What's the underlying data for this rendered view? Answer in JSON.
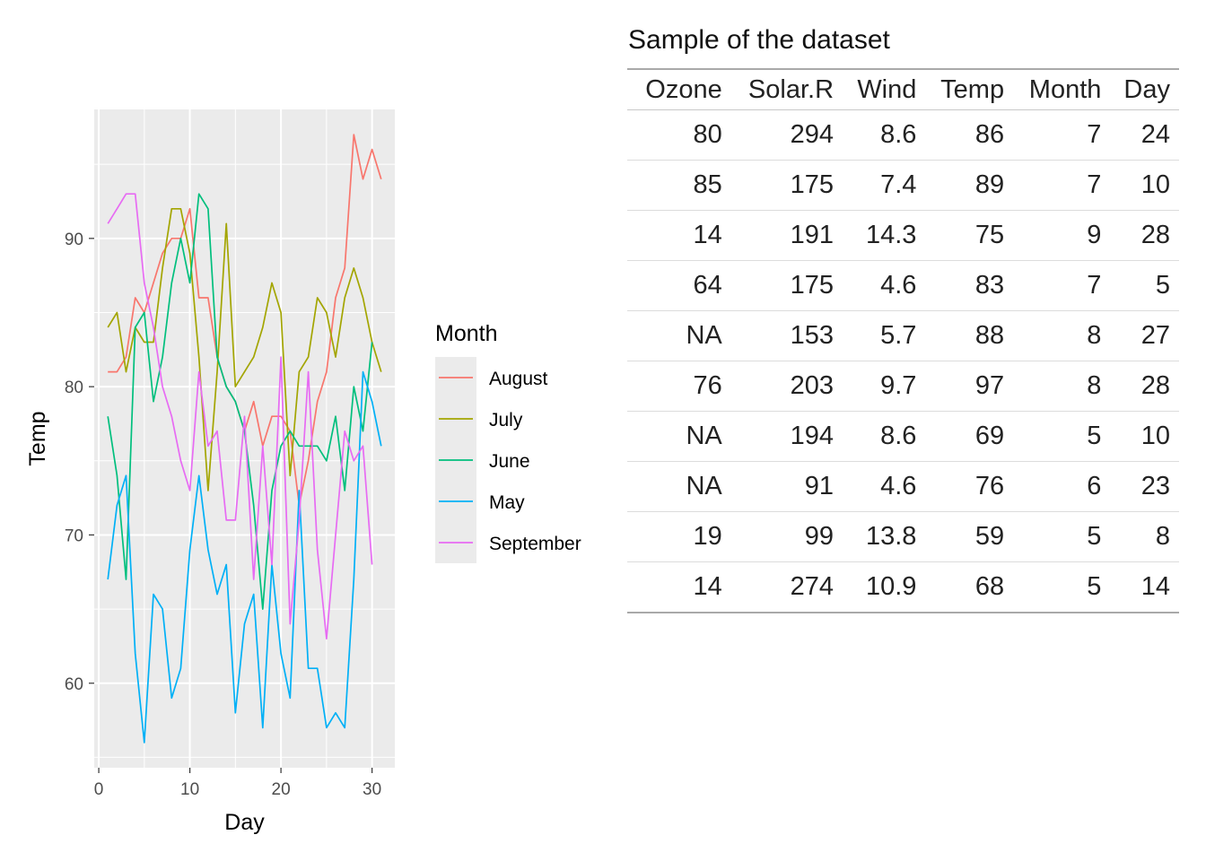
{
  "chart_data": {
    "type": "line",
    "title": "",
    "xlabel": "Day",
    "ylabel": "Temp",
    "xlim": [
      -0.5,
      32.5
    ],
    "ylim": [
      54.3,
      98.7
    ],
    "xticks": [
      0,
      10,
      20,
      30
    ],
    "yticks": [
      60,
      70,
      80,
      90
    ],
    "grid": true,
    "legend": {
      "title": "Month",
      "position": "right"
    },
    "series": [
      {
        "name": "August",
        "color": "#F8766D",
        "x": [
          1,
          2,
          3,
          4,
          5,
          6,
          7,
          8,
          9,
          10,
          11,
          12,
          13,
          14,
          15,
          16,
          17,
          18,
          19,
          20,
          21,
          22,
          23,
          24,
          25,
          26,
          27,
          28,
          29,
          30,
          31
        ],
        "values": [
          81,
          81,
          82,
          86,
          85,
          87,
          89,
          90,
          90,
          92,
          86,
          86,
          82,
          80,
          79,
          77,
          79,
          76,
          78,
          78,
          77,
          72,
          75,
          79,
          81,
          86,
          88,
          97,
          94,
          96,
          94
        ]
      },
      {
        "name": "July",
        "color": "#A3A500",
        "x": [
          1,
          2,
          3,
          4,
          5,
          6,
          7,
          8,
          9,
          10,
          11,
          12,
          13,
          14,
          15,
          16,
          17,
          18,
          19,
          20,
          21,
          22,
          23,
          24,
          25,
          26,
          27,
          28,
          29,
          30,
          31
        ],
        "values": [
          84,
          85,
          81,
          84,
          83,
          83,
          88,
          92,
          92,
          89,
          82,
          73,
          81,
          91,
          80,
          81,
          82,
          84,
          87,
          85,
          74,
          81,
          82,
          86,
          85,
          82,
          86,
          88,
          86,
          83,
          81
        ]
      },
      {
        "name": "June",
        "color": "#00BF7D",
        "x": [
          1,
          2,
          3,
          4,
          5,
          6,
          7,
          8,
          9,
          10,
          11,
          12,
          13,
          14,
          15,
          16,
          17,
          18,
          19,
          20,
          21,
          22,
          23,
          24,
          25,
          26,
          27,
          28,
          29,
          30
        ],
        "values": [
          78,
          74,
          67,
          84,
          85,
          79,
          82,
          87,
          90,
          87,
          93,
          92,
          82,
          80,
          79,
          77,
          72,
          65,
          73,
          76,
          77,
          76,
          76,
          76,
          75,
          78,
          73,
          80,
          77,
          83
        ]
      },
      {
        "name": "May",
        "color": "#00B0F6",
        "x": [
          1,
          2,
          3,
          4,
          5,
          6,
          7,
          8,
          9,
          10,
          11,
          12,
          13,
          14,
          15,
          16,
          17,
          18,
          19,
          20,
          21,
          22,
          23,
          24,
          25,
          26,
          27,
          28,
          29,
          30,
          31
        ],
        "values": [
          67,
          72,
          74,
          62,
          56,
          66,
          65,
          59,
          61,
          69,
          74,
          69,
          66,
          68,
          58,
          64,
          66,
          57,
          68,
          62,
          59,
          73,
          61,
          61,
          57,
          58,
          57,
          67,
          81,
          79,
          76
        ]
      },
      {
        "name": "September",
        "color": "#E76BF3",
        "x": [
          1,
          2,
          3,
          4,
          5,
          6,
          7,
          8,
          9,
          10,
          11,
          12,
          13,
          14,
          15,
          16,
          17,
          18,
          19,
          20,
          21,
          22,
          23,
          24,
          25,
          26,
          27,
          28,
          29,
          30
        ],
        "values": [
          91,
          92,
          93,
          93,
          87,
          84,
          80,
          78,
          75,
          73,
          81,
          76,
          77,
          71,
          71,
          78,
          67,
          76,
          68,
          82,
          64,
          71,
          81,
          69,
          63,
          70,
          77,
          75,
          76,
          68
        ]
      }
    ]
  },
  "table": {
    "title": "Sample of the dataset",
    "columns": [
      "Ozone",
      "Solar.R",
      "Wind",
      "Temp",
      "Month",
      "Day"
    ],
    "rows": [
      [
        "80",
        "294",
        "8.6",
        "86",
        "7",
        "24"
      ],
      [
        "85",
        "175",
        "7.4",
        "89",
        "7",
        "10"
      ],
      [
        "14",
        "191",
        "14.3",
        "75",
        "9",
        "28"
      ],
      [
        "64",
        "175",
        "4.6",
        "83",
        "7",
        "5"
      ],
      [
        "NA",
        "153",
        "5.7",
        "88",
        "8",
        "27"
      ],
      [
        "76",
        "203",
        "9.7",
        "97",
        "8",
        "28"
      ],
      [
        "NA",
        "194",
        "8.6",
        "69",
        "5",
        "10"
      ],
      [
        "NA",
        "91",
        "4.6",
        "76",
        "6",
        "23"
      ],
      [
        "19",
        "99",
        "13.8",
        "59",
        "5",
        "8"
      ],
      [
        "14",
        "274",
        "10.9",
        "68",
        "5",
        "14"
      ]
    ]
  }
}
